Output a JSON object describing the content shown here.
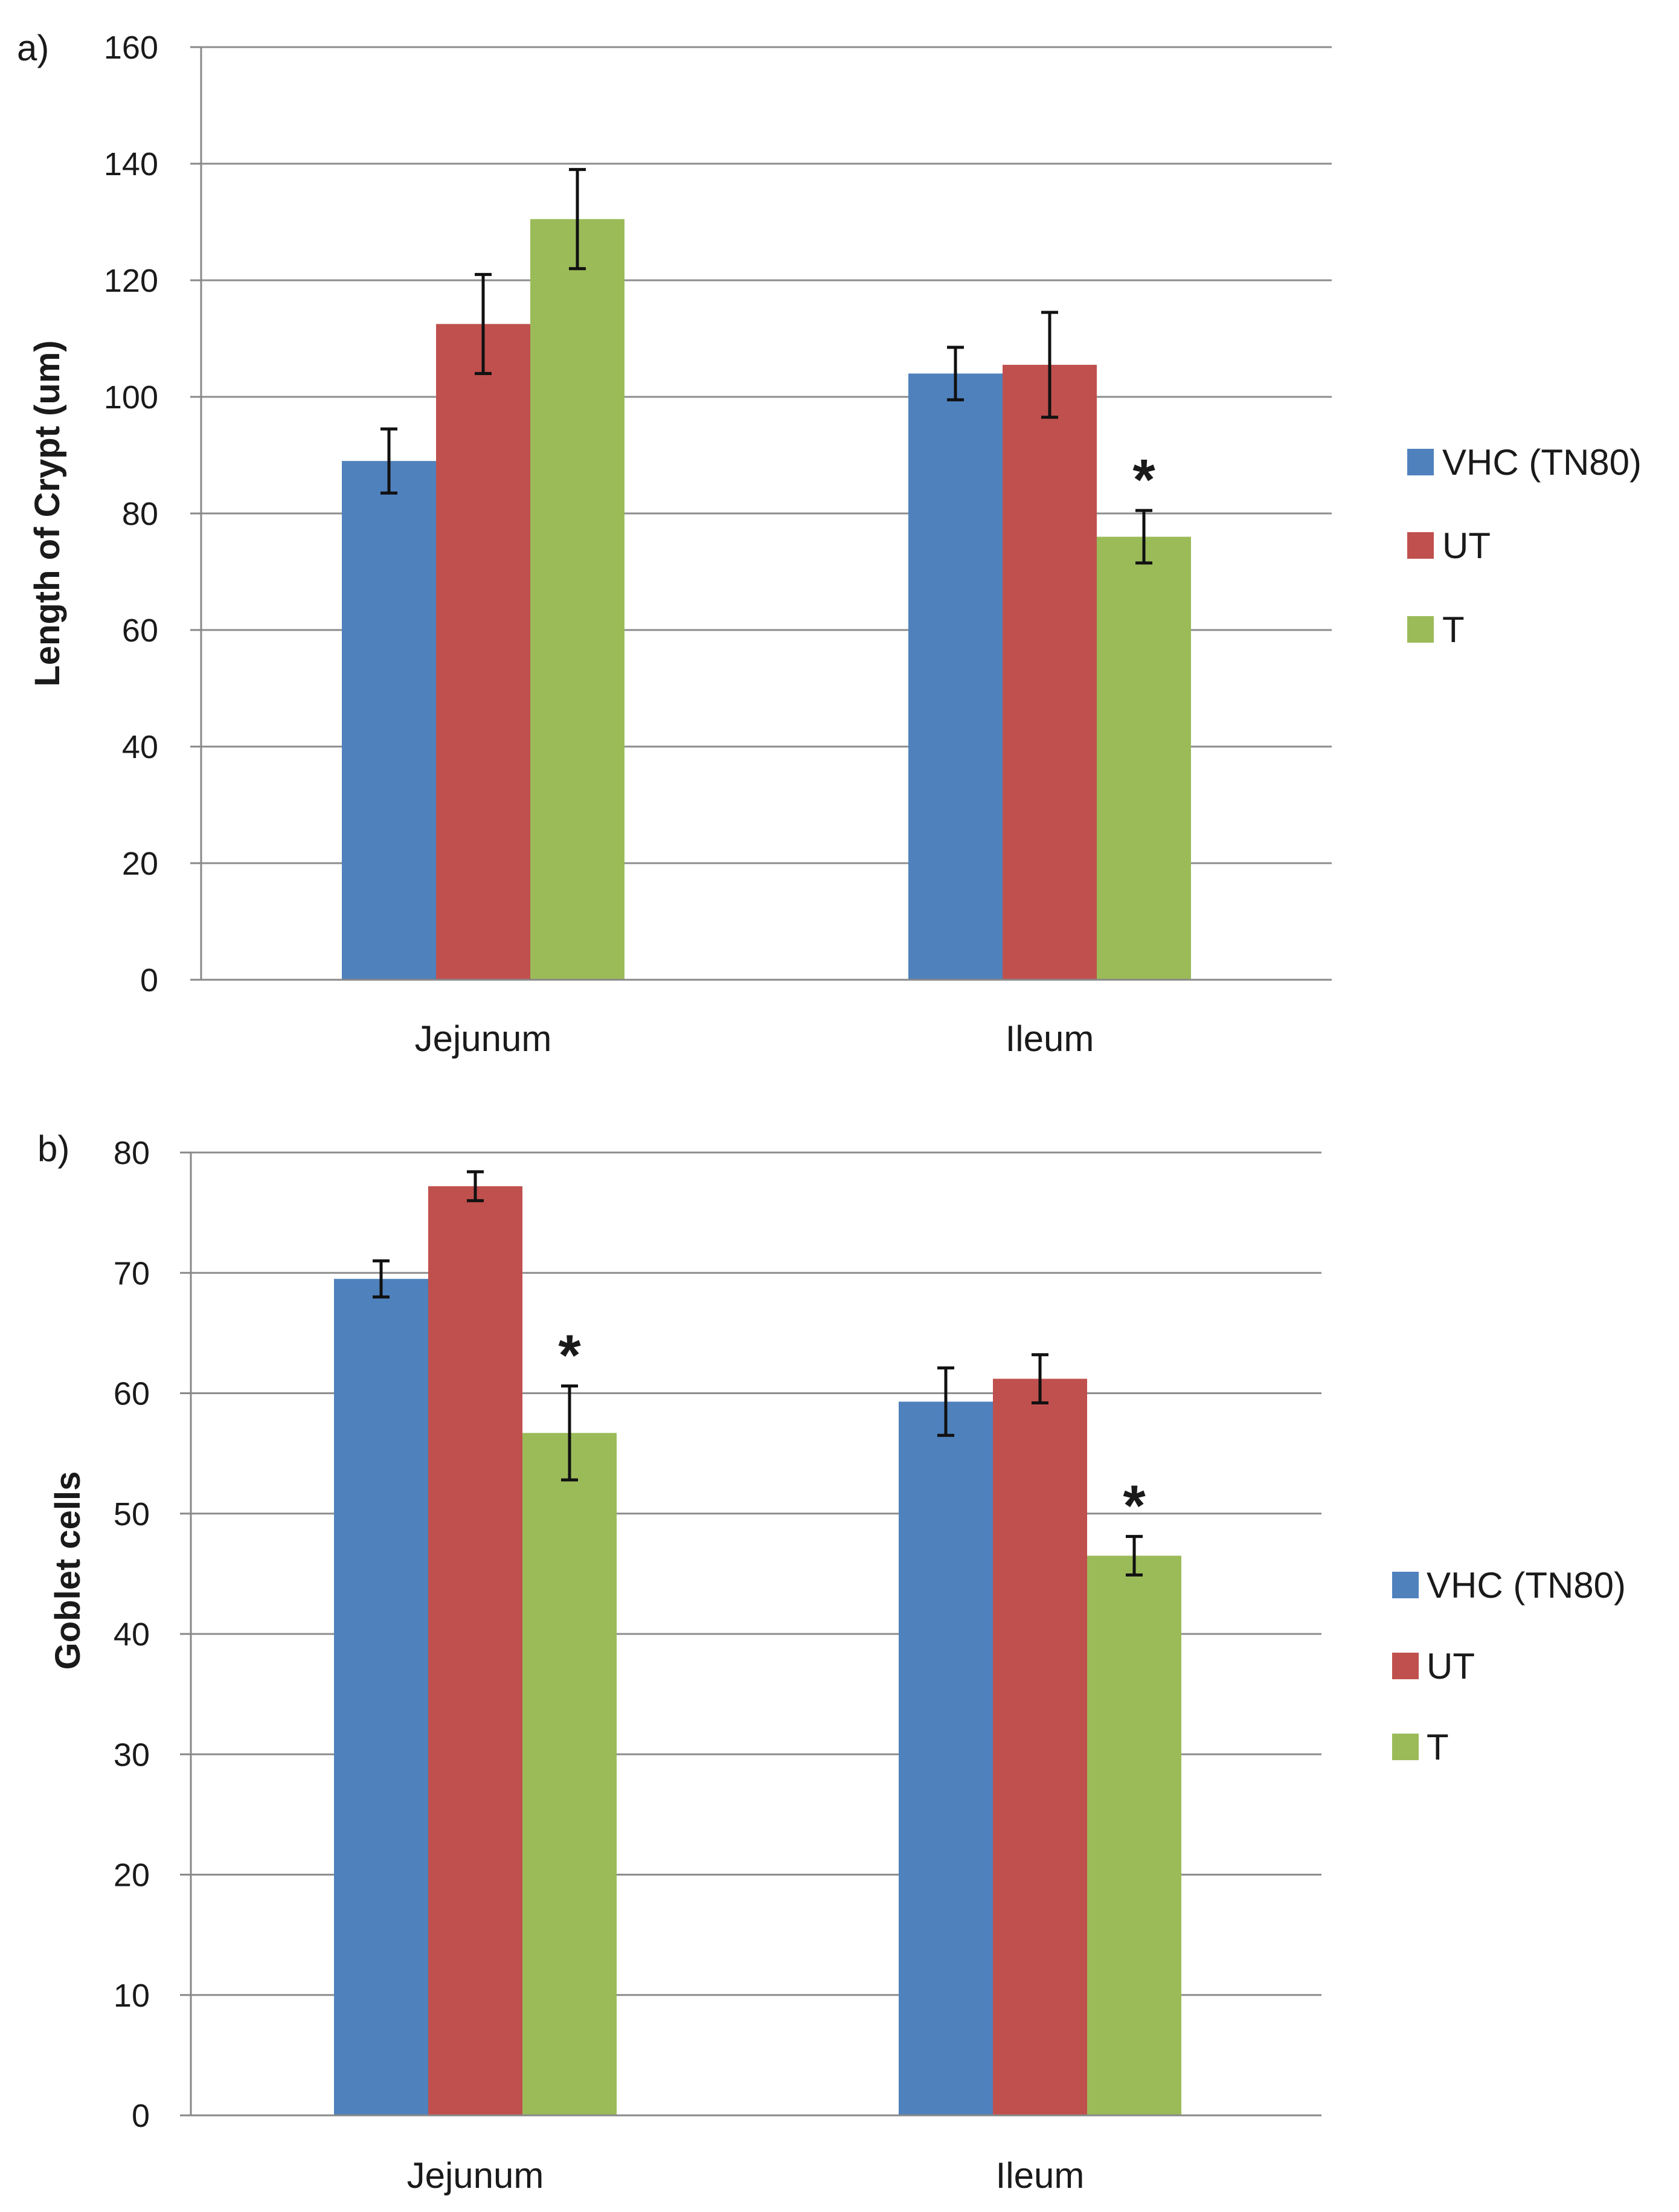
{
  "chart_data": [
    {
      "type": "bar",
      "panel_label": "a)",
      "title": "",
      "xlabel": "",
      "ylabel": "Length of Crypt (um)",
      "ylim": [
        0,
        160
      ],
      "yticks": [
        "0",
        "20",
        "40",
        "60",
        "80",
        "100",
        "120",
        "140",
        "160"
      ],
      "grid": true,
      "legend_position": "right",
      "categories": [
        "Jejunum",
        "Ileum"
      ],
      "series": [
        {
          "name": "VHC (TN80)",
          "color": "#4f81bd",
          "values": [
            89,
            104
          ],
          "errors": [
            5.5,
            4.5
          ]
        },
        {
          "name": "UT",
          "color": "#c0504d",
          "values": [
            112.5,
            105.5
          ],
          "errors": [
            8.5,
            9
          ]
        },
        {
          "name": "T",
          "color": "#9bbb59",
          "values": [
            130.5,
            76
          ],
          "errors": [
            8.5,
            4.5
          ]
        }
      ],
      "annotations": [
        {
          "text": "*",
          "category": "Ileum",
          "series": "T"
        }
      ]
    },
    {
      "type": "bar",
      "panel_label": "b)",
      "title": "",
      "xlabel": "",
      "ylabel": "Goblet cells",
      "ylim": [
        0,
        80
      ],
      "yticks": [
        "0",
        "10",
        "20",
        "30",
        "40",
        "50",
        "60",
        "70",
        "80"
      ],
      "grid": true,
      "legend_position": "right",
      "categories": [
        "Jejunum",
        "Ileum"
      ],
      "series": [
        {
          "name": "VHC (TN80)",
          "color": "#4f81bd",
          "values": [
            69.5,
            59.3
          ],
          "errors": [
            1.5,
            2.8
          ]
        },
        {
          "name": "UT",
          "color": "#c0504d",
          "values": [
            77.2,
            61.2
          ],
          "errors": [
            1.2,
            2
          ]
        },
        {
          "name": "T",
          "color": "#9bbb59",
          "values": [
            56.7,
            46.5
          ],
          "errors": [
            3.9,
            1.6
          ]
        }
      ],
      "annotations": [
        {
          "text": "*",
          "category": "Jejunum",
          "series": "T"
        },
        {
          "text": "*",
          "category": "Ileum",
          "series": "T"
        }
      ]
    }
  ]
}
